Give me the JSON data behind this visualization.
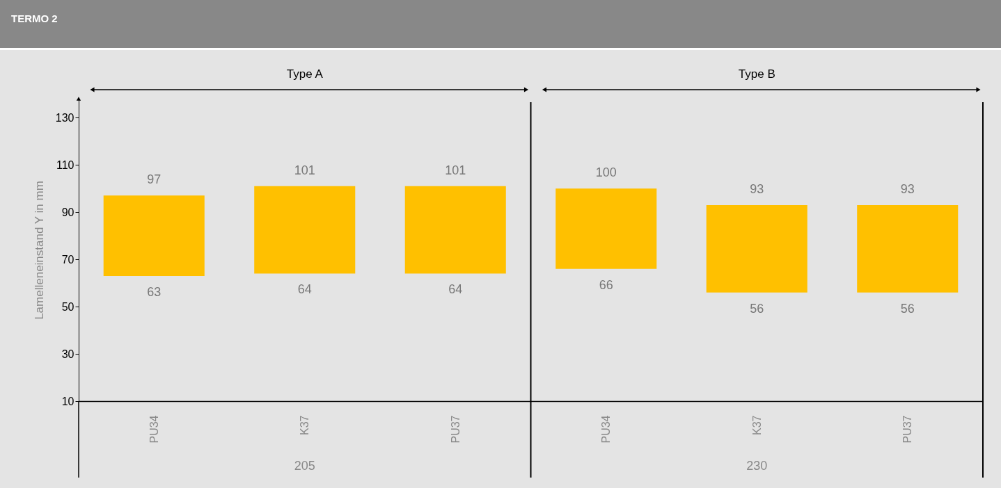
{
  "chart_data": {
    "type": "bar",
    "title": "TERMO 2",
    "ylabel": "Lamelleneinstand Y in mm",
    "categories": [
      "PU34",
      "K37",
      "PU37",
      "PU34",
      "K37",
      "PU37"
    ],
    "base": [
      63,
      64,
      64,
      66,
      56,
      56
    ],
    "values": [
      34,
      37,
      37,
      34,
      37,
      37
    ],
    "value_labels": [
      "97",
      "101",
      "101",
      "100",
      "93",
      "93"
    ],
    "color": "#ffc000",
    "ylim": [
      10,
      138
    ],
    "yticks": [
      10,
      30,
      50,
      70,
      90,
      110,
      130
    ],
    "annotations": [
      "Type A",
      "Type B",
      "205",
      "230",
      "63",
      "64",
      "64",
      "66",
      "56",
      "56"
    ]
  }
}
